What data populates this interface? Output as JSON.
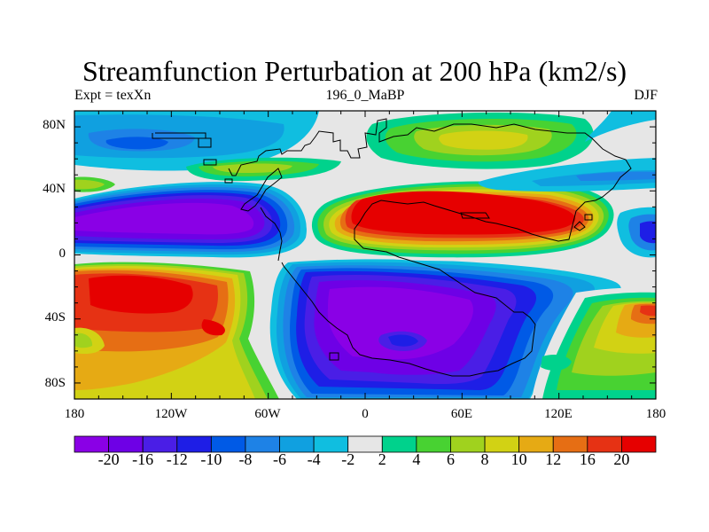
{
  "title": "Streamfunction Perturbation at 200 hPa (km2/s)",
  "left_string": "Expt = texXn",
  "center_string": "196_0_MaBP",
  "right_string": "DJF",
  "chart_data": {
    "type": "heatmap",
    "map_projection": "cylindrical equidistant",
    "xlim": [
      -180,
      180
    ],
    "ylim": [
      -90,
      90
    ],
    "x_ticks": [
      {
        "value": -180,
        "label": "180"
      },
      {
        "value": -120,
        "label": "120W"
      },
      {
        "value": -60,
        "label": "60W"
      },
      {
        "value": 0,
        "label": "0"
      },
      {
        "value": 60,
        "label": "60E"
      },
      {
        "value": 120,
        "label": "120E"
      },
      {
        "value": 180,
        "label": "180"
      }
    ],
    "y_ticks": [
      {
        "value": 80,
        "label": "80N"
      },
      {
        "value": 40,
        "label": "40N"
      },
      {
        "value": 0,
        "label": "0"
      },
      {
        "value": -40,
        "label": "40S"
      },
      {
        "value": -80,
        "label": "80S"
      }
    ],
    "levels": [
      {
        "label": "-20",
        "color": "#8a00e6"
      },
      {
        "label": "-16",
        "color": "#6e00e6"
      },
      {
        "label": "-12",
        "color": "#4a1ee6"
      },
      {
        "label": "-10",
        "color": "#1e1ee6"
      },
      {
        "label": "-8",
        "color": "#005ae6"
      },
      {
        "label": "-6",
        "color": "#1e82e6"
      },
      {
        "label": "-4",
        "color": "#10a0e0"
      },
      {
        "label": "-2",
        "color": "#10bee0"
      },
      {
        "label": "2",
        "color": "#e6e6e6"
      },
      {
        "label": "4",
        "color": "#00d28c"
      },
      {
        "label": "6",
        "color": "#48d232"
      },
      {
        "label": "8",
        "color": "#a0d21e"
      },
      {
        "label": "10",
        "color": "#d2d214"
      },
      {
        "label": "12",
        "color": "#e6aa14"
      },
      {
        "label": "16",
        "color": "#e66e14"
      },
      {
        "label": "20",
        "color": "#e63214"
      },
      {
        "label": "",
        "color": "#e60000"
      }
    ]
  },
  "colors": {
    "background": "#ffffff",
    "neutral": "#e6e6e6",
    "coast": "#000000"
  }
}
